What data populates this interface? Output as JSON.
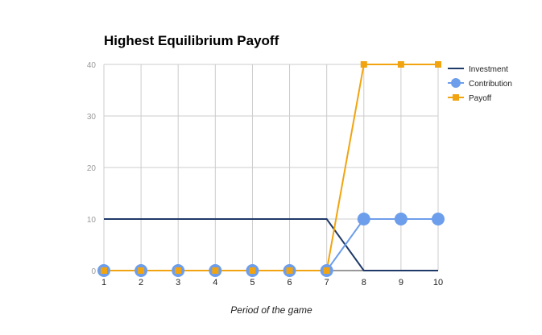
{
  "chart_data": {
    "type": "line",
    "title": "Highest Equilibrium Payoff",
    "xlabel": "Period of the game",
    "ylabel": "",
    "x": [
      1,
      2,
      3,
      4,
      5,
      6,
      7,
      8,
      9,
      10
    ],
    "xlim": [
      1,
      10
    ],
    "ylim": [
      0,
      40
    ],
    "yticks": [
      0,
      10,
      20,
      30,
      40
    ],
    "grid": true,
    "legend_position": "right",
    "series": [
      {
        "name": "Investment",
        "color": "#1f3a68",
        "marker": "none",
        "values": [
          10,
          10,
          10,
          10,
          10,
          10,
          10,
          0,
          0,
          0
        ]
      },
      {
        "name": "Contribution",
        "color": "#6d9eeb",
        "marker": "circle",
        "values": [
          0,
          0,
          0,
          0,
          0,
          0,
          0,
          10,
          10,
          10
        ]
      },
      {
        "name": "Payoff",
        "color": "#f1a40f",
        "marker": "square",
        "values": [
          0,
          0,
          0,
          0,
          0,
          0,
          0,
          40,
          40,
          40
        ]
      }
    ]
  }
}
